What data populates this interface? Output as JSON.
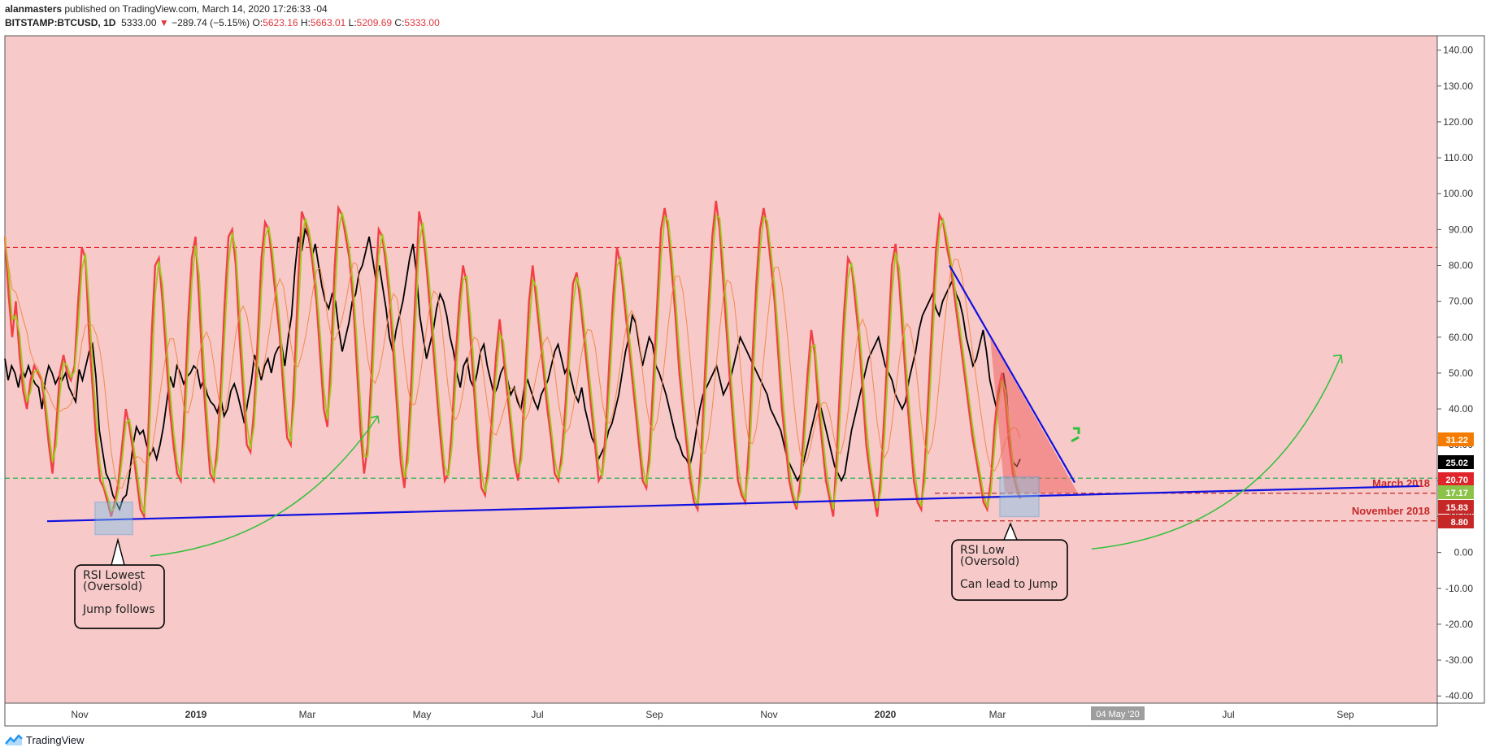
{
  "header": {
    "author": "alanmasters",
    "published_text": " published on TradingView.com, March 14, 2020 17:26:33 -04",
    "symbol": "BITSTAMP:BTCUSD, 1D",
    "last": "5333.00",
    "change_arrow": "▼",
    "change": "−289.74 (−5.15%)",
    "o_label": "O:",
    "o_val": "5623.16",
    "h_label": "H:",
    "h_val": "5663.01",
    "l_label": "L:",
    "l_val": "5209.69",
    "c_label": "C:",
    "c_val": "5333.00"
  },
  "footer": {
    "brand": "TradingView"
  },
  "colors": {
    "panel_bg": "#f7c9c9",
    "rsi_black": "#000000",
    "rsi_red": "#f23f45",
    "rsi_green": "#9ccc18",
    "rsi_orange": "#f08c4a",
    "trendline": "#1010e0",
    "arrow": "#2fc13a",
    "zone": "#7fc4e8",
    "level_red": "#e0242b",
    "level_green": "#22b14c"
  },
  "chart_data": {
    "type": "line",
    "ylim": [
      -42,
      144
    ],
    "y_ticks": [
      "140.00",
      "130.00",
      "120.00",
      "110.00",
      "100.00",
      "90.00",
      "80.00",
      "70.00",
      "60.00",
      "50.00",
      "40.00",
      "30.00",
      "20.00",
      "10.00",
      "0.00",
      "-10.00",
      "-20.00",
      "-30.00",
      "-40.00"
    ],
    "y_tick_values": [
      140,
      130,
      120,
      110,
      100,
      90,
      80,
      70,
      60,
      50,
      40,
      30,
      20,
      10,
      0,
      -10,
      -20,
      -30,
      -40
    ],
    "x_ticks": [
      "Nov",
      "2019",
      "Mar",
      "May",
      "Jul",
      "Sep",
      "Nov",
      "2020",
      "Mar",
      "May",
      "Jul",
      "Sep"
    ],
    "x_tick_bold": [
      false,
      true,
      false,
      false,
      false,
      false,
      false,
      true,
      false,
      false,
      false,
      false
    ],
    "x_highlight_label": "04 May '20",
    "price_labels": [
      {
        "text": "31.22",
        "value": 31.22,
        "color": "#f57c00"
      },
      {
        "text": "25.02",
        "value": 25.02,
        "color": "#000000"
      },
      {
        "text": "20.70",
        "value": 20.7,
        "color": "#e0242b"
      },
      {
        "text": "17.17",
        "value": 17.17,
        "color": "#8bc34a"
      },
      {
        "text": "15.83",
        "value": 15.83,
        "color": "#c62828"
      },
      {
        "text": "8.80",
        "value": 8.8,
        "color": "#c62828"
      }
    ],
    "horizontal_levels": [
      {
        "value": 85,
        "color": "#e0242b",
        "dash": true
      },
      {
        "value": 20.7,
        "color": "#22b14c",
        "dash": true
      },
      {
        "value": 16.5,
        "color": "#c62828",
        "dash": true,
        "label": "March 2018"
      },
      {
        "value": 8.8,
        "color": "#c62828",
        "dash": true,
        "label": "November 2018"
      }
    ],
    "series": [
      {
        "name": "",
        "color": "#000000",
        "values": [
          54,
          48,
          52,
          50,
          46,
          51,
          49,
          52,
          49,
          47,
          46,
          40,
          48,
          52,
          50,
          47,
          49,
          48,
          50,
          46,
          44,
          42,
          51,
          48,
          52,
          56,
          58,
          49,
          34,
          28,
          22,
          20,
          16,
          14,
          12,
          15,
          16,
          22,
          30,
          35,
          33,
          34,
          30,
          27,
          29,
          26,
          30,
          35,
          42,
          49,
          46,
          52,
          50,
          47,
          49,
          50,
          52,
          51,
          46,
          48,
          44,
          42,
          41,
          39,
          43,
          38,
          40,
          45,
          47,
          44,
          40,
          36,
          42,
          47,
          55,
          52,
          48,
          52,
          54,
          50,
          55,
          57,
          58,
          52,
          60,
          66,
          79,
          88,
          84,
          90,
          88,
          82,
          86,
          80,
          74,
          70,
          68,
          72,
          70,
          62,
          56,
          60,
          64,
          70,
          72,
          78,
          80,
          84,
          88,
          82,
          76,
          80,
          74,
          68,
          60,
          56,
          62,
          66,
          70,
          76,
          82,
          86,
          78,
          66,
          60,
          54,
          58,
          62,
          68,
          72,
          70,
          66,
          60,
          56,
          50,
          46,
          52,
          54,
          48,
          46,
          50,
          56,
          58,
          52,
          48,
          44,
          46,
          50,
          52,
          48,
          44,
          46,
          42,
          40,
          46,
          48,
          45,
          42,
          40,
          44,
          46,
          48,
          52,
          56,
          58,
          54,
          50,
          52,
          48,
          44,
          42,
          46,
          40,
          36,
          32,
          30,
          26,
          28,
          30,
          34,
          36,
          40,
          44,
          50,
          56,
          60,
          66,
          64,
          58,
          52,
          56,
          60,
          58,
          52,
          50,
          47,
          44,
          40,
          36,
          32,
          30,
          27,
          26,
          24,
          28,
          34,
          40,
          44,
          46,
          48,
          50,
          52,
          48,
          44,
          46,
          48,
          52,
          56,
          60,
          58,
          56,
          54,
          52,
          50,
          48,
          46,
          44,
          40,
          38,
          36,
          34,
          30,
          26,
          24,
          22,
          20,
          22,
          26,
          30,
          34,
          38,
          42,
          40,
          36,
          32,
          28,
          24,
          22,
          20,
          22,
          28,
          34,
          38,
          42,
          46,
          50,
          54,
          56,
          58,
          60,
          56,
          52,
          50,
          48,
          44,
          42,
          40,
          42,
          48,
          52,
          56,
          62,
          66,
          68,
          70,
          72,
          68,
          66,
          70,
          72,
          74,
          76,
          72,
          70,
          66,
          60,
          56,
          52,
          54,
          58,
          62,
          56,
          48,
          44,
          40,
          46,
          50,
          44,
          28,
          25,
          24,
          26
        ],
        "x_start_index": 0
      },
      {
        "name": "",
        "color": "#f23f45",
        "values": [
          88,
          72,
          60,
          70,
          55,
          45,
          40,
          48,
          52,
          50,
          48,
          40,
          30,
          22,
          35,
          50,
          55,
          50,
          48,
          52,
          70,
          85,
          82,
          60,
          45,
          30,
          20,
          18,
          14,
          10,
          14,
          20,
          30,
          40,
          35,
          28,
          20,
          12,
          10,
          30,
          60,
          80,
          82,
          70,
          55,
          40,
          30,
          22,
          20,
          40,
          65,
          82,
          88,
          70,
          50,
          35,
          22,
          20,
          30,
          48,
          70,
          88,
          90,
          80,
          60,
          45,
          30,
          28,
          40,
          60,
          82,
          92,
          90,
          80,
          70,
          60,
          45,
          32,
          30,
          50,
          75,
          95,
          92,
          88,
          80,
          70,
          55,
          40,
          35,
          55,
          80,
          96,
          94,
          88,
          82,
          70,
          52,
          34,
          22,
          30,
          50,
          72,
          90,
          88,
          80,
          70,
          55,
          40,
          25,
          18,
          30,
          50,
          72,
          95,
          90,
          80,
          68,
          55,
          42,
          30,
          20,
          22,
          35,
          55,
          70,
          80,
          75,
          60,
          45,
          30,
          18,
          16,
          25,
          40,
          55,
          65,
          55,
          45,
          35,
          25,
          20,
          30,
          50,
          70,
          80,
          70,
          60,
          50,
          40,
          32,
          22,
          20,
          28,
          42,
          60,
          75,
          78,
          70,
          60,
          50,
          40,
          30,
          20,
          22,
          35,
          55,
          72,
          85,
          80,
          70,
          60,
          50,
          40,
          30,
          20,
          18,
          30,
          50,
          70,
          90,
          96,
          90,
          78,
          65,
          50,
          40,
          30,
          20,
          14,
          12,
          28,
          50,
          70,
          88,
          98,
          90,
          75,
          60,
          45,
          32,
          20,
          16,
          14,
          30,
          55,
          75,
          90,
          96,
          90,
          80,
          70,
          55,
          40,
          30,
          20,
          15,
          12,
          20,
          35,
          50,
          62,
          55,
          40,
          30,
          20,
          15,
          10,
          28,
          50,
          68,
          82,
          80,
          70,
          60,
          45,
          30,
          22,
          16,
          10,
          22,
          40,
          60,
          80,
          86,
          75,
          60,
          45,
          32,
          20,
          14,
          12,
          25,
          45,
          65,
          84,
          94,
          92,
          85,
          80,
          72,
          64,
          56,
          48,
          40,
          32,
          26,
          20,
          14,
          12,
          20,
          35,
          45,
          50,
          42,
          30,
          22,
          18,
          15
        ],
        "x_start_index": 0
      }
    ],
    "annotations": [
      {
        "text_lines": [
          "RSI Lowest",
          "(Oversold)",
          "",
          "Jump follows"
        ]
      },
      {
        "text_lines": [
          "RSI Low",
          "(Oversold)",
          "",
          "Can lead to Jump"
        ]
      }
    ]
  }
}
